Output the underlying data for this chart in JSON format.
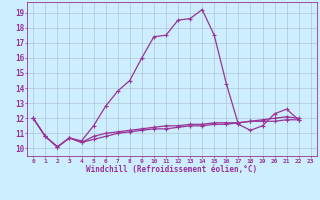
{
  "xlabel": "Windchill (Refroidissement éolien,°C)",
  "background_color": "#cceeff",
  "line_color": "#993399",
  "grid_color": "#aabbcc",
  "xlim": [
    -0.5,
    23.5
  ],
  "ylim": [
    9.5,
    19.7
  ],
  "xticks": [
    0,
    1,
    2,
    3,
    4,
    5,
    6,
    7,
    8,
    9,
    10,
    11,
    12,
    13,
    14,
    15,
    16,
    17,
    18,
    19,
    20,
    21,
    22,
    23
  ],
  "yticks": [
    10,
    11,
    12,
    13,
    14,
    15,
    16,
    17,
    18,
    19
  ],
  "line1_x": [
    0,
    1,
    2,
    3,
    4,
    5,
    6,
    7,
    8,
    9,
    10,
    11,
    12,
    13,
    14,
    15,
    16,
    17,
    18,
    19,
    20,
    21,
    22
  ],
  "line1_y": [
    12.0,
    10.8,
    10.1,
    10.7,
    10.5,
    11.5,
    12.8,
    13.8,
    14.5,
    16.0,
    17.4,
    17.5,
    18.5,
    18.6,
    19.2,
    17.5,
    14.3,
    11.6,
    11.2,
    11.5,
    12.3,
    12.6,
    11.9
  ],
  "line2_x": [
    0,
    1,
    2,
    3,
    4,
    5,
    6,
    7,
    8,
    9,
    10,
    11,
    12,
    13,
    14,
    15,
    16,
    17,
    18,
    19,
    20,
    21,
    22
  ],
  "line2_y": [
    12.0,
    10.8,
    10.1,
    10.7,
    10.4,
    10.8,
    11.0,
    11.1,
    11.2,
    11.3,
    11.4,
    11.5,
    11.5,
    11.6,
    11.6,
    11.7,
    11.7,
    11.7,
    11.8,
    11.8,
    11.8,
    11.9,
    11.9
  ],
  "line3_x": [
    0,
    1,
    2,
    3,
    4,
    5,
    6,
    7,
    8,
    9,
    10,
    11,
    12,
    13,
    14,
    15,
    16,
    17,
    18,
    19,
    20,
    21,
    22
  ],
  "line3_y": [
    12.0,
    10.8,
    10.1,
    10.7,
    10.4,
    10.6,
    10.8,
    11.0,
    11.1,
    11.2,
    11.3,
    11.3,
    11.4,
    11.5,
    11.5,
    11.6,
    11.6,
    11.7,
    11.8,
    11.9,
    12.0,
    12.1,
    12.0
  ]
}
